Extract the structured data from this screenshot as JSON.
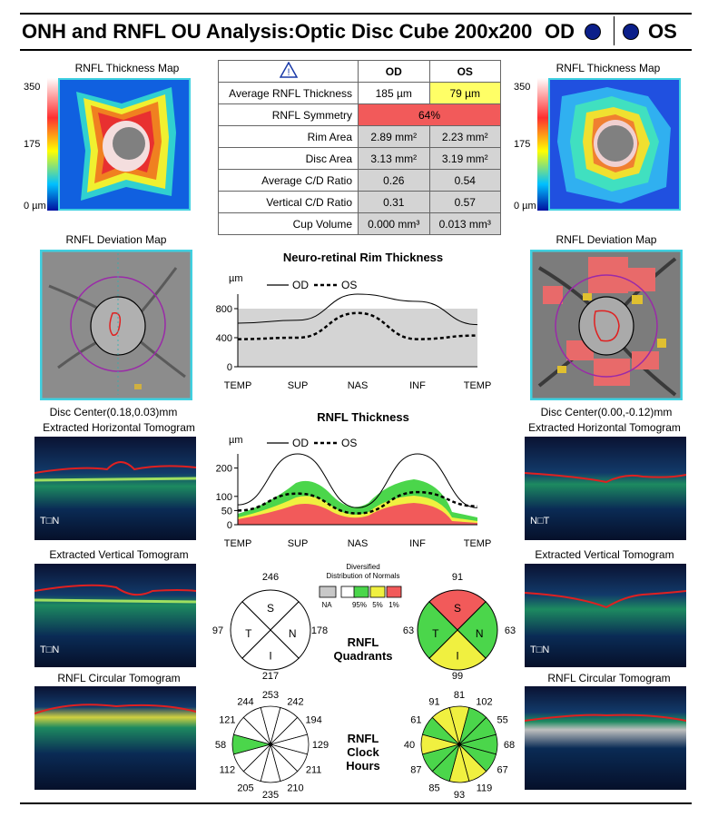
{
  "header": {
    "title": "ONH and RNFL OU Analysis:Optic Disc Cube 200x200",
    "od": "OD",
    "os": "OS"
  },
  "thickness_map": {
    "title": "RNFL Thickness Map",
    "scale_max": "350",
    "scale_mid": "175",
    "scale_min": "0 µm"
  },
  "table": {
    "head_od": "OD",
    "head_os": "OS",
    "rows": [
      {
        "label": "Average RNFL Thickness",
        "od": "185 µm",
        "os": "79 µm"
      },
      {
        "label": "RNFL Symmetry",
        "both": "64%"
      },
      {
        "label": "Rim Area",
        "od": "2.89 mm²",
        "os": "2.23 mm²"
      },
      {
        "label": "Disc Area",
        "od": "3.13 mm²",
        "os": "3.19 mm²"
      },
      {
        "label": "Average C/D Ratio",
        "od": "0.26",
        "os": "0.54"
      },
      {
        "label": "Vertical C/D Ratio",
        "od": "0.31",
        "os": "0.57"
      },
      {
        "label": "Cup Volume",
        "od": "0.000 mm³",
        "os": "0.013 mm³"
      }
    ],
    "colors": {
      "os_avg": "#ffff66",
      "symmetry": "#f25a5a"
    }
  },
  "deviation_map": {
    "title": "RNFL Deviation Map",
    "od_center": "Disc Center(0.18,0.03)mm",
    "os_center": "Disc Center(0.00,-0.12)mm"
  },
  "tomograms": {
    "horizontal": "Extracted Horizontal Tomogram",
    "vertical": "Extracted Vertical Tomogram",
    "circular": "RNFL Circular Tomogram",
    "t": "T",
    "n": "N"
  },
  "rim_chart": {
    "title": "Neuro-retinal Rim Thickness",
    "unit": "µm",
    "legend_od": "OD",
    "legend_os": "OS",
    "x_labels": [
      "TEMP",
      "SUP",
      "NAS",
      "INF",
      "TEMP"
    ],
    "y_ticks": [
      "0",
      "400",
      "800"
    ]
  },
  "rnfl_chart": {
    "title": "RNFL Thickness",
    "unit": "µm",
    "legend_od": "OD",
    "legend_os": "OS",
    "x_labels": [
      "TEMP",
      "SUP",
      "NAS",
      "INF",
      "TEMP"
    ],
    "y_ticks": [
      "0",
      "50",
      "100",
      "200"
    ]
  },
  "chart_data": [
    {
      "type": "line",
      "title": "Neuro-retinal Rim Thickness",
      "ylabel": "µm",
      "ylim": [
        0,
        1000
      ],
      "x": [
        "TEMP",
        "SUP",
        "NAS",
        "INF",
        "TEMP"
      ],
      "series": [
        {
          "name": "OD",
          "values": [
            600,
            640,
            1000,
            900,
            580
          ]
        },
        {
          "name": "OS",
          "values": [
            380,
            400,
            740,
            380,
            430
          ]
        }
      ],
      "normal_band": [
        0,
        800
      ]
    },
    {
      "type": "line",
      "title": "RNFL Thickness",
      "ylabel": "µm",
      "ylim": [
        0,
        250
      ],
      "x": [
        "TEMP",
        "SUP",
        "NAS",
        "INF",
        "TEMP"
      ],
      "series": [
        {
          "name": "OD",
          "values": [
            70,
            280,
            60,
            280,
            60
          ]
        },
        {
          "name": "OS",
          "values": [
            50,
            110,
            40,
            115,
            65
          ]
        }
      ]
    }
  ],
  "diversified": {
    "title_line1": "Diversified",
    "title_line2": "Distribution of Normals",
    "labels": [
      "NA",
      "95%",
      "5%",
      "1%"
    ],
    "colors": [
      "#c8c8c8",
      "#ffffff",
      "#4bd64b",
      "#f0f040",
      "#f25a5a"
    ]
  },
  "quadrants": {
    "label_line1": "RNFL",
    "label_line2": "Quadrants",
    "letters": [
      "S",
      "N",
      "I",
      "T"
    ],
    "od": {
      "s": "246",
      "n": "178",
      "i": "217",
      "t": "97"
    },
    "os": {
      "s": "91",
      "n": "63",
      "i": "99",
      "t": "63"
    },
    "os_colors": {
      "s": "#f25a5a",
      "n": "#4bd64b",
      "i": "#f0f040",
      "t": "#4bd64b"
    }
  },
  "clock": {
    "label_line1": "RNFL",
    "label_line2": "Clock",
    "label_line3": "Hours",
    "od": [
      "253",
      "242",
      "194",
      "129",
      "211",
      "210",
      "235",
      "205",
      "112",
      "58",
      "121",
      "244"
    ],
    "os": [
      "81",
      "102",
      "55",
      "68",
      "67",
      "119",
      "93",
      "85",
      "87",
      "40",
      "61",
      "91"
    ],
    "od_colors": [
      "#fff",
      "#fff",
      "#fff",
      "#fff",
      "#fff",
      "#fff",
      "#fff",
      "#fff",
      "#fff",
      "#4bd64b",
      "#fff",
      "#fff"
    ],
    "os_colors": [
      "#f0f040",
      "#4bd64b",
      "#4bd64b",
      "#4bd64b",
      "#4bd64b",
      "#f0f040",
      "#f0f040",
      "#4bd64b",
      "#4bd64b",
      "#f0f040",
      "#4bd64b",
      "#f0f040"
    ]
  }
}
